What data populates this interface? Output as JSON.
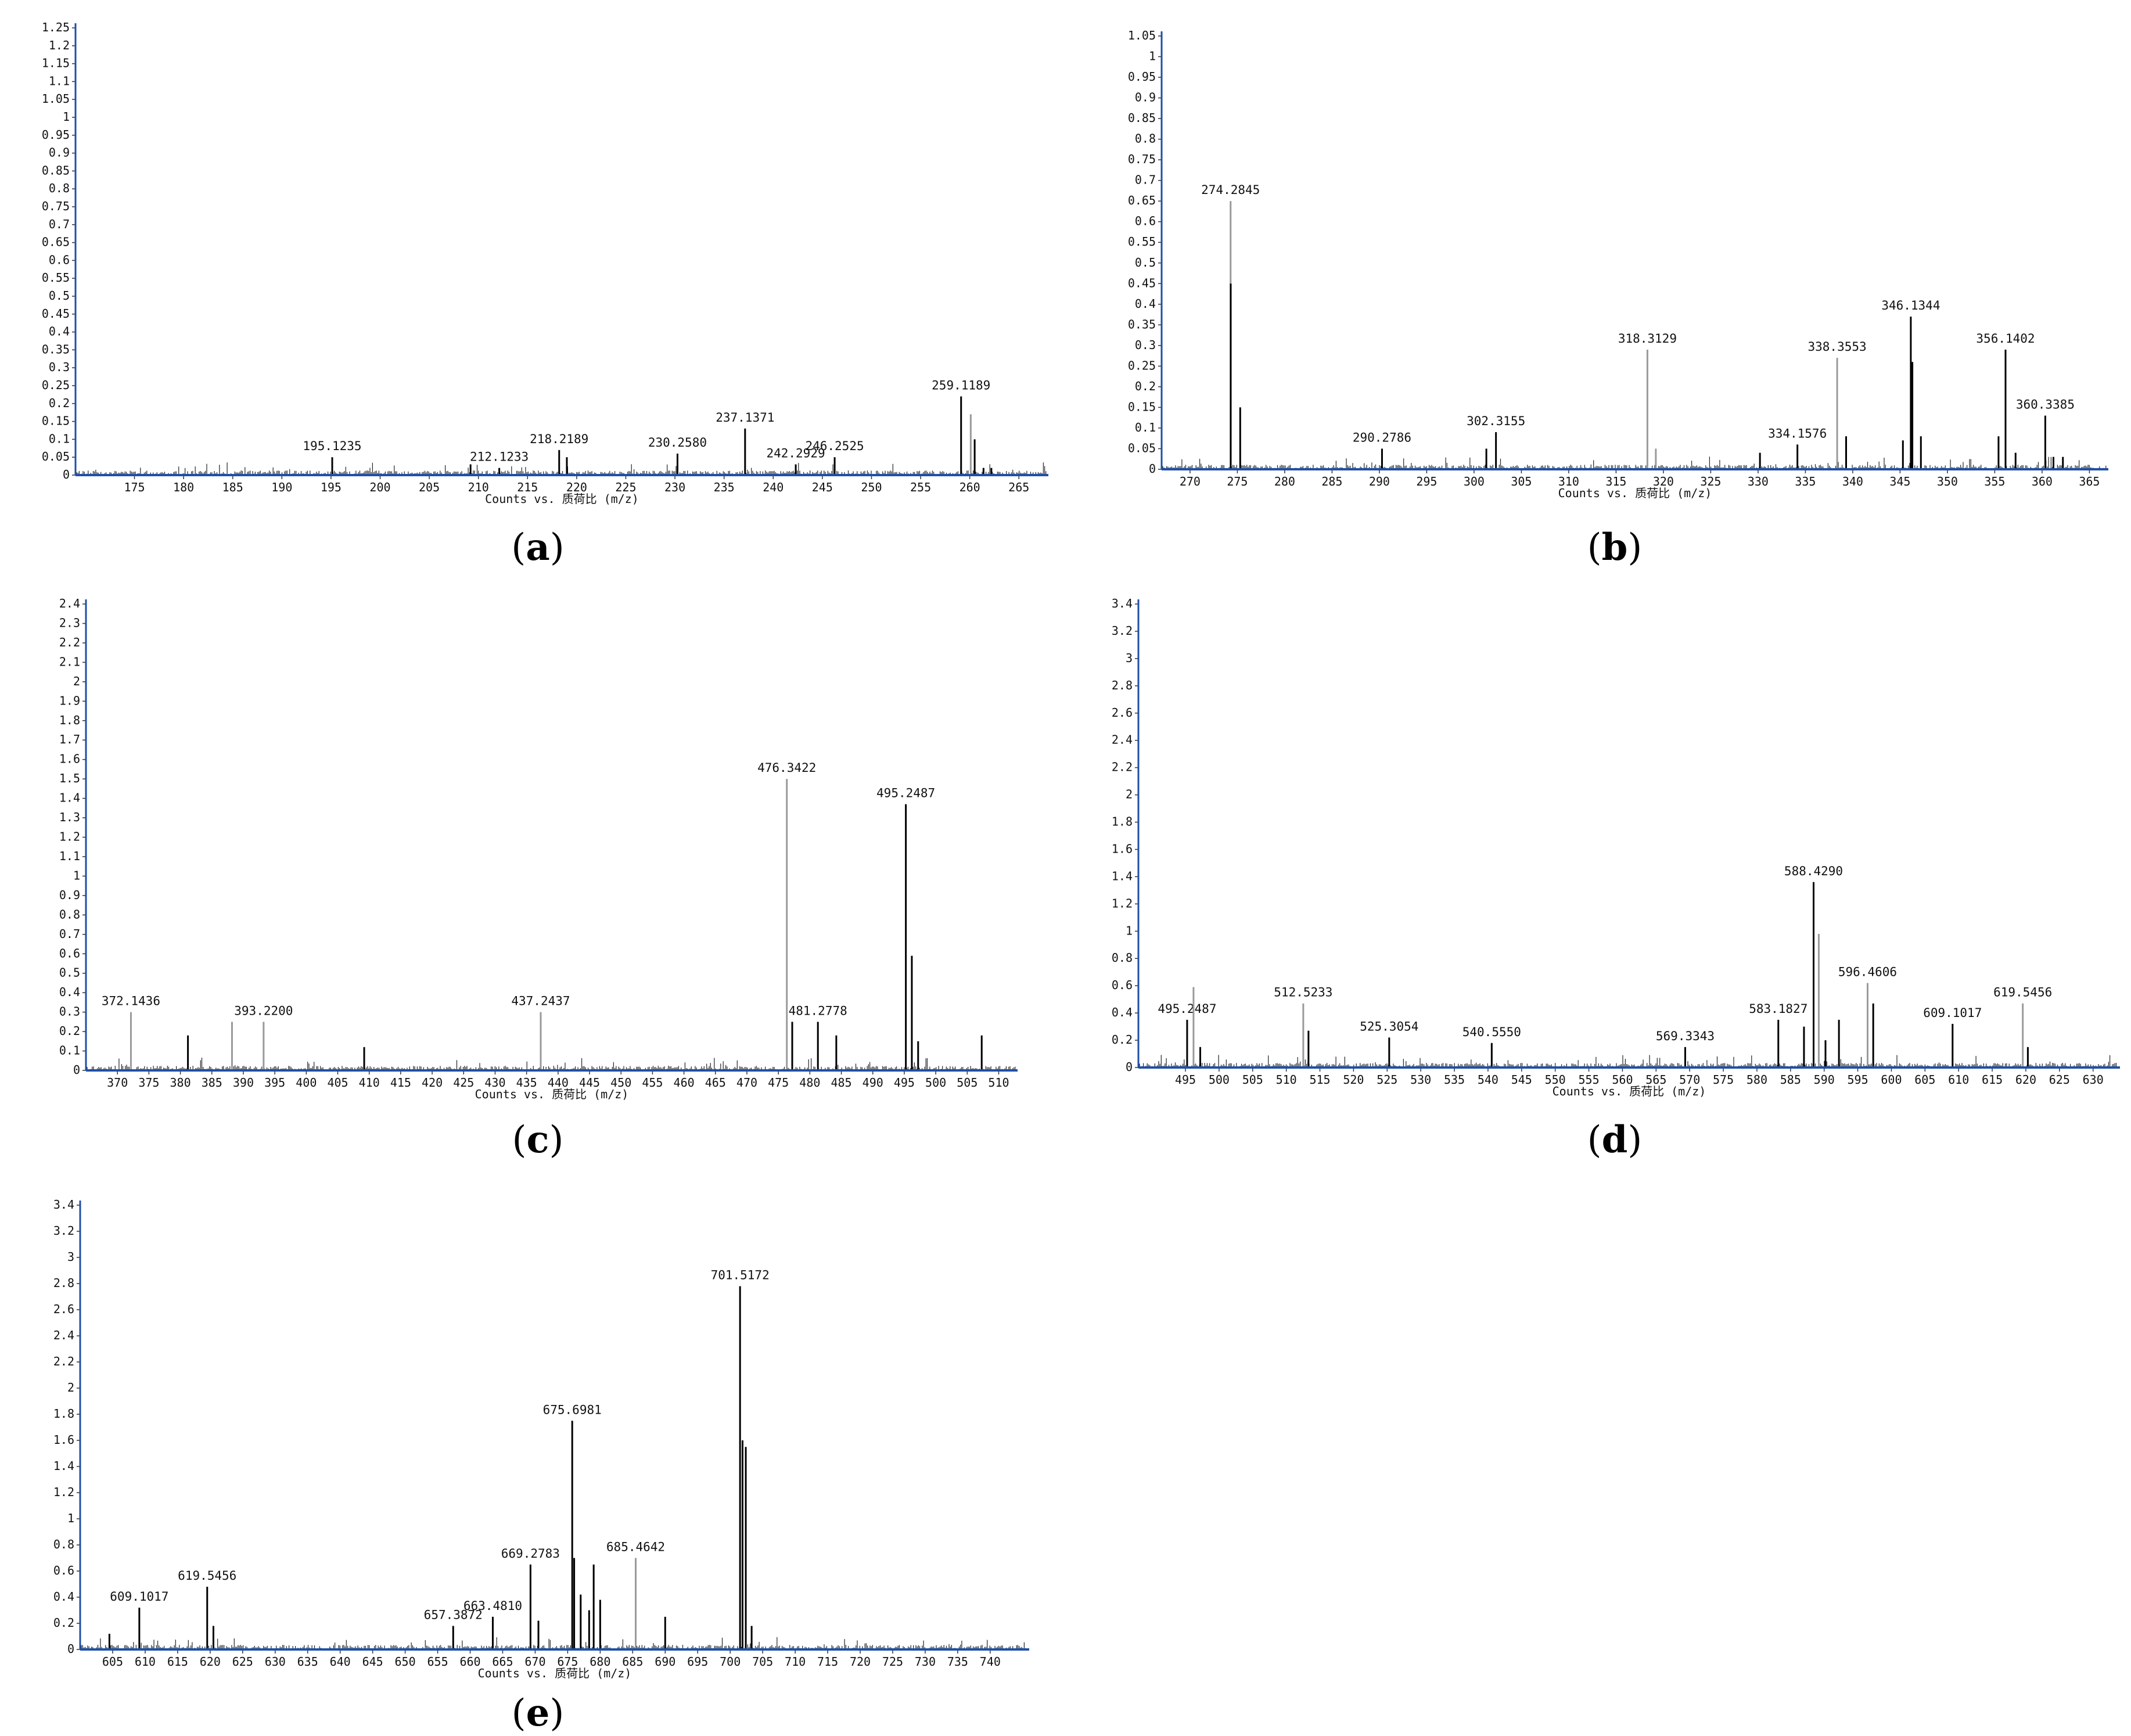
{
  "figure": {
    "panels": [
      "(a)",
      "(b)",
      "(c)",
      "(d)",
      "(e)"
    ]
  },
  "colors": {
    "axis": "#1f4fa8",
    "peak": "#000000",
    "peak_light": "#9a9a9a",
    "noise": "#222222"
  },
  "chart_data": [
    {
      "id": "a",
      "type": "bar",
      "panel_label": "a",
      "xlabel": "Counts vs. 质荷比 (m/z)",
      "xlim": [
        169,
        268
      ],
      "ylim": [
        0,
        1.25
      ],
      "x_ticks": [
        175,
        180,
        185,
        190,
        195,
        200,
        205,
        210,
        215,
        220,
        225,
        230,
        235,
        240,
        245,
        250,
        255,
        260,
        265
      ],
      "x_tick_labels": [
        "175",
        "180",
        "185",
        "190",
        "195",
        "200",
        "205",
        "210",
        "215",
        "220",
        "225",
        "230",
        "235",
        "240",
        "245",
        "250",
        "255",
        "260",
        "265"
      ],
      "y_ticks": [
        0,
        0.05,
        0.1,
        0.15,
        0.2,
        0.25,
        0.3,
        0.35,
        0.4,
        0.45,
        0.5,
        0.55,
        0.6,
        0.65,
        0.7,
        0.75,
        0.8,
        0.85,
        0.9,
        0.95,
        1,
        1.05,
        1.1,
        1.15,
        1.2,
        1.25
      ],
      "y_tick_labels": [
        "0",
        "0.05",
        "0.1",
        "0.15",
        "0.2",
        "0.25",
        "0.3",
        "0.35",
        "0.4",
        "0.45",
        "0.5",
        "0.55",
        "0.6",
        "0.65",
        "0.7",
        "0.75",
        "0.8",
        "0.85",
        "0.9",
        "0.95",
        "1",
        "1.05",
        "1.1",
        "1.15",
        "1.2",
        "1.25"
      ],
      "peaks": [
        {
          "x": 195.1235,
          "y": 0.05,
          "label": "195.1235"
        },
        {
          "x": 209.2,
          "y": 0.03
        },
        {
          "x": 212.1233,
          "y": 0.02,
          "label": "212.1233"
        },
        {
          "x": 218.2189,
          "y": 0.07,
          "label": "218.2189"
        },
        {
          "x": 219.0,
          "y": 0.05
        },
        {
          "x": 230.258,
          "y": 0.06,
          "label": "230.2580"
        },
        {
          "x": 237.1371,
          "y": 0.13,
          "label": "237.1371"
        },
        {
          "x": 242.2929,
          "y": 0.03,
          "label": "242.2929"
        },
        {
          "x": 246.2525,
          "y": 0.05,
          "label": "246.2525"
        },
        {
          "x": 259.1189,
          "y": 0.22,
          "label": "259.1189"
        },
        {
          "x": 260.1,
          "y": 0.17,
          "light": true
        },
        {
          "x": 260.5,
          "y": 0.1
        },
        {
          "x": 261.4,
          "y": 0.02
        },
        {
          "x": 262.2,
          "y": 0.02
        }
      ]
    },
    {
      "id": "b",
      "type": "bar",
      "panel_label": "b",
      "xlabel": "Counts vs. 质荷比 (m/z)",
      "xlim": [
        267,
        367
      ],
      "ylim": [
        0,
        1.05
      ],
      "x_ticks": [
        270,
        275,
        280,
        285,
        290,
        295,
        300,
        305,
        310,
        315,
        320,
        325,
        330,
        335,
        340,
        345,
        350,
        355,
        360,
        365
      ],
      "x_tick_labels": [
        "270",
        "275",
        "280",
        "285",
        "290",
        "295",
        "300",
        "305",
        "310",
        "315",
        "320",
        "325",
        "330",
        "335",
        "340",
        "345",
        "350",
        "355",
        "360",
        "365"
      ],
      "y_ticks": [
        0,
        0.05,
        0.1,
        0.15,
        0.2,
        0.25,
        0.3,
        0.35,
        0.4,
        0.45,
        0.5,
        0.55,
        0.6,
        0.65,
        0.7,
        0.75,
        0.8,
        0.85,
        0.9,
        0.95,
        1,
        1.05
      ],
      "y_tick_labels": [
        "0",
        "0.05",
        "0.1",
        "0.15",
        "0.2",
        "0.25",
        "0.3",
        "0.35",
        "0.4",
        "0.45",
        "0.5",
        "0.55",
        "0.6",
        "0.65",
        "0.7",
        "0.75",
        "0.8",
        "0.85",
        "0.9",
        "0.95",
        "1",
        "1.05"
      ],
      "peaks": [
        {
          "x": 274.2845,
          "y": 0.65,
          "label": "274.2845",
          "light": true
        },
        {
          "x": 274.3,
          "y": 0.45
        },
        {
          "x": 275.3,
          "y": 0.15
        },
        {
          "x": 290.2786,
          "y": 0.05,
          "label": "290.2786"
        },
        {
          "x": 301.3,
          "y": 0.05
        },
        {
          "x": 302.3155,
          "y": 0.09,
          "label": "302.3155"
        },
        {
          "x": 318.3129,
          "y": 0.29,
          "label": "318.3129",
          "light": true
        },
        {
          "x": 319.2,
          "y": 0.05,
          "light": true
        },
        {
          "x": 330.2,
          "y": 0.04
        },
        {
          "x": 334.1576,
          "y": 0.06,
          "label": "334.1576"
        },
        {
          "x": 338.3553,
          "y": 0.27,
          "label": "338.3553",
          "light": true
        },
        {
          "x": 339.3,
          "y": 0.08
        },
        {
          "x": 345.3,
          "y": 0.07
        },
        {
          "x": 346.1344,
          "y": 0.37,
          "label": "346.1344"
        },
        {
          "x": 346.3,
          "y": 0.26
        },
        {
          "x": 347.2,
          "y": 0.08
        },
        {
          "x": 355.4,
          "y": 0.08
        },
        {
          "x": 356.1402,
          "y": 0.29,
          "label": "356.1402"
        },
        {
          "x": 357.2,
          "y": 0.04
        },
        {
          "x": 360.3385,
          "y": 0.13,
          "label": "360.3385"
        },
        {
          "x": 361.2,
          "y": 0.03
        },
        {
          "x": 362.2,
          "y": 0.03
        }
      ]
    },
    {
      "id": "c",
      "type": "bar",
      "panel_label": "c",
      "xlabel": "Counts vs. 质荷比 (m/z)",
      "xlim": [
        365,
        513
      ],
      "ylim": [
        0,
        2.4
      ],
      "x_ticks": [
        370,
        375,
        380,
        385,
        390,
        395,
        400,
        405,
        410,
        415,
        420,
        425,
        430,
        435,
        440,
        445,
        450,
        455,
        460,
        465,
        470,
        475,
        480,
        485,
        490,
        495,
        500,
        505,
        510
      ],
      "x_tick_labels": [
        "370",
        "375",
        "380",
        "385",
        "390",
        "395",
        "400",
        "405",
        "410",
        "415",
        "420",
        "425",
        "430",
        "435",
        "440",
        "445",
        "450",
        "455",
        "460",
        "465",
        "470",
        "475",
        "480",
        "485",
        "490",
        "495",
        "500",
        "505",
        "510"
      ],
      "y_ticks": [
        0,
        0.1,
        0.2,
        0.3,
        0.4,
        0.5,
        0.6,
        0.7,
        0.8,
        0.9,
        1,
        1.1,
        1.2,
        1.3,
        1.4,
        1.5,
        1.6,
        1.7,
        1.8,
        1.9,
        2,
        2.1,
        2.2,
        2.3,
        2.4
      ],
      "y_tick_labels": [
        "0",
        "0.1",
        "0.2",
        "0.3",
        "0.4",
        "0.5",
        "0.6",
        "0.7",
        "0.8",
        "0.9",
        "1",
        "1.1",
        "1.2",
        "1.3",
        "1.4",
        "1.5",
        "1.6",
        "1.7",
        "1.8",
        "1.9",
        "2",
        "2.1",
        "2.2",
        "2.3",
        "2.4"
      ],
      "peaks": [
        {
          "x": 372.1436,
          "y": 0.3,
          "label": "372.1436",
          "light": true
        },
        {
          "x": 381.2,
          "y": 0.18
        },
        {
          "x": 388.2,
          "y": 0.25,
          "light": true
        },
        {
          "x": 393.22,
          "y": 0.25,
          "label": "393.2200",
          "light": true
        },
        {
          "x": 409.2,
          "y": 0.12
        },
        {
          "x": 437.2437,
          "y": 0.3,
          "label": "437.2437",
          "light": true
        },
        {
          "x": 476.3422,
          "y": 1.5,
          "label": "476.3422",
          "light": true
        },
        {
          "x": 477.2,
          "y": 0.25
        },
        {
          "x": 481.2778,
          "y": 0.25,
          "label": "481.2778"
        },
        {
          "x": 484.2,
          "y": 0.18
        },
        {
          "x": 495.2487,
          "y": 1.37,
          "label": "495.2487"
        },
        {
          "x": 496.2,
          "y": 0.59
        },
        {
          "x": 497.2,
          "y": 0.15
        },
        {
          "x": 507.3,
          "y": 0.18
        }
      ]
    },
    {
      "id": "d",
      "type": "bar",
      "panel_label": "d",
      "xlabel": "Counts vs. 质荷比 (m/z)",
      "xlim": [
        488,
        634
      ],
      "ylim": [
        0,
        3.4
      ],
      "x_ticks": [
        495,
        500,
        505,
        510,
        515,
        520,
        525,
        530,
        535,
        540,
        545,
        550,
        555,
        560,
        565,
        570,
        575,
        580,
        585,
        590,
        595,
        600,
        605,
        610,
        615,
        620,
        625,
        630
      ],
      "x_tick_labels": [
        "495",
        "500",
        "505",
        "510",
        "515",
        "520",
        "525",
        "530",
        "535",
        "540",
        "545",
        "550",
        "555",
        "560",
        "565",
        "570",
        "575",
        "580",
        "585",
        "590",
        "595",
        "600",
        "605",
        "610",
        "615",
        "620",
        "625",
        "630"
      ],
      "y_ticks": [
        0,
        0.2,
        0.4,
        0.6,
        0.8,
        1,
        1.2,
        1.4,
        1.6,
        1.8,
        2,
        2.2,
        2.4,
        2.6,
        2.8,
        3,
        3.2,
        3.4
      ],
      "y_tick_labels": [
        "0",
        "0.2",
        "0.4",
        "0.6",
        "0.8",
        "1",
        "1.2",
        "1.4",
        "1.6",
        "1.8",
        "2",
        "2.2",
        "2.4",
        "2.6",
        "2.8",
        "3",
        "3.2",
        "3.4"
      ],
      "peaks": [
        {
          "x": 495.2487,
          "y": 0.35,
          "label": "495.2487"
        },
        {
          "x": 496.2,
          "y": 0.59,
          "light": true
        },
        {
          "x": 497.2,
          "y": 0.15
        },
        {
          "x": 512.5233,
          "y": 0.47,
          "label": "512.5233",
          "light": true
        },
        {
          "x": 513.3,
          "y": 0.27
        },
        {
          "x": 525.3054,
          "y": 0.22,
          "label": "525.3054"
        },
        {
          "x": 540.555,
          "y": 0.18,
          "label": "540.5550"
        },
        {
          "x": 569.3343,
          "y": 0.15,
          "label": "569.3343"
        },
        {
          "x": 583.1827,
          "y": 0.35,
          "label": "583.1827"
        },
        {
          "x": 587.0,
          "y": 0.3
        },
        {
          "x": 588.429,
          "y": 1.36,
          "label": "588.4290"
        },
        {
          "x": 589.2,
          "y": 0.98,
          "light": true
        },
        {
          "x": 590.2,
          "y": 0.2
        },
        {
          "x": 592.2,
          "y": 0.35
        },
        {
          "x": 596.4606,
          "y": 0.62,
          "label": "596.4606",
          "light": true
        },
        {
          "x": 597.3,
          "y": 0.47
        },
        {
          "x": 609.1017,
          "y": 0.32,
          "label": "609.1017"
        },
        {
          "x": 619.5456,
          "y": 0.47,
          "label": "619.5456",
          "light": true
        },
        {
          "x": 620.3,
          "y": 0.15
        }
      ]
    },
    {
      "id": "e",
      "type": "bar",
      "panel_label": "e",
      "xlabel": "Counts vs. 质荷比 (m/z)",
      "xlim": [
        600,
        746
      ],
      "ylim": [
        0,
        3.4
      ],
      "x_ticks": [
        605,
        610,
        615,
        620,
        625,
        630,
        635,
        640,
        645,
        650,
        655,
        660,
        665,
        670,
        675,
        680,
        685,
        690,
        695,
        700,
        705,
        710,
        715,
        720,
        725,
        730,
        735,
        740
      ],
      "x_tick_labels": [
        "605",
        "610",
        "615",
        "620",
        "625",
        "630",
        "635",
        "640",
        "645",
        "650",
        "655",
        "660",
        "665",
        "670",
        "675",
        "680",
        "685",
        "690",
        "695",
        "700",
        "705",
        "710",
        "715",
        "720",
        "725",
        "730",
        "735",
        "740"
      ],
      "y_ticks": [
        0,
        0.2,
        0.4,
        0.6,
        0.8,
        1,
        1.2,
        1.4,
        1.6,
        1.8,
        2,
        2.2,
        2.4,
        2.6,
        2.8,
        3,
        3.2,
        3.4
      ],
      "y_tick_labels": [
        "0",
        "0.2",
        "0.4",
        "0.6",
        "0.8",
        "1",
        "1.2",
        "1.4",
        "1.6",
        "1.8",
        "2",
        "2.2",
        "2.4",
        "2.6",
        "2.8",
        "3",
        "3.2",
        "3.4"
      ],
      "peaks": [
        {
          "x": 604.5,
          "y": 0.12
        },
        {
          "x": 609.1017,
          "y": 0.32,
          "label": "609.1017"
        },
        {
          "x": 619.5456,
          "y": 0.48,
          "label": "619.5456"
        },
        {
          "x": 620.5,
          "y": 0.18
        },
        {
          "x": 657.3872,
          "y": 0.18,
          "label": "657.3872"
        },
        {
          "x": 663.481,
          "y": 0.25,
          "label": "663.4810"
        },
        {
          "x": 669.2783,
          "y": 0.65,
          "label": "669.2783"
        },
        {
          "x": 670.5,
          "y": 0.22
        },
        {
          "x": 675.6981,
          "y": 1.75,
          "label": "675.6981"
        },
        {
          "x": 676.0,
          "y": 0.7
        },
        {
          "x": 677.0,
          "y": 0.42
        },
        {
          "x": 678.3,
          "y": 0.3
        },
        {
          "x": 679.0,
          "y": 0.65
        },
        {
          "x": 680.0,
          "y": 0.38
        },
        {
          "x": 685.4642,
          "y": 0.7,
          "label": "685.4642",
          "light": true
        },
        {
          "x": 690.0,
          "y": 0.25
        },
        {
          "x": 701.5172,
          "y": 2.78,
          "label": "701.5172"
        },
        {
          "x": 701.9,
          "y": 1.6
        },
        {
          "x": 702.4,
          "y": 1.55
        },
        {
          "x": 703.3,
          "y": 0.18
        }
      ]
    }
  ]
}
